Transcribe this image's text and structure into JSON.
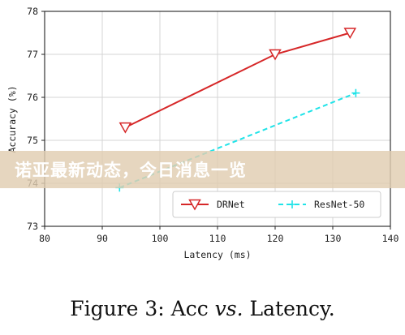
{
  "chart_data": {
    "type": "line",
    "xlabel": "Latency (ms)",
    "ylabel": "Accuracy (%)",
    "xlim": [
      80,
      140
    ],
    "ylim": [
      73,
      78
    ],
    "xticks": [
      80,
      90,
      100,
      110,
      120,
      130,
      140
    ],
    "yticks": [
      73,
      74,
      75,
      76,
      77,
      78
    ],
    "grid": true,
    "legend_position": "lower-right",
    "series": [
      {
        "name": "DRNet",
        "color": "#d62728",
        "linestyle": "solid",
        "marker": "triangle-down",
        "x": [
          94,
          120,
          133
        ],
        "y": [
          75.3,
          77.0,
          77.5
        ]
      },
      {
        "name": "ResNet-50",
        "color": "#1fe3e8",
        "linestyle": "dashed",
        "marker": "plus",
        "x": [
          93,
          134
        ],
        "y": [
          73.9,
          76.1
        ]
      }
    ]
  },
  "banner": {
    "text": "诺亚最新动态，今日消息一览"
  },
  "caption": {
    "prefix": "Figure 3: Acc ",
    "vs": "vs.",
    "suffix": " Latency."
  }
}
